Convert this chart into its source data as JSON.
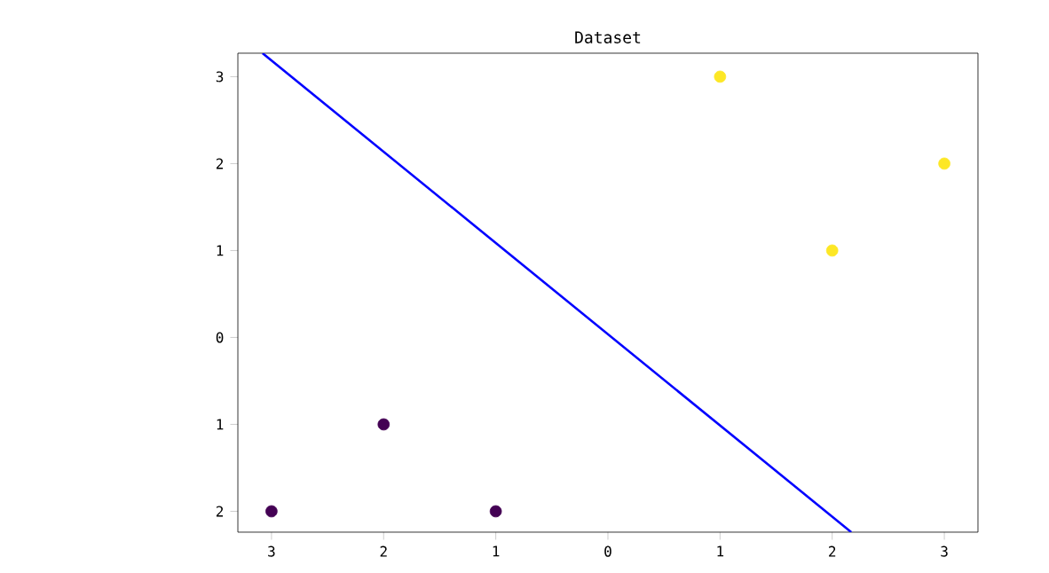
{
  "chart_data": {
    "type": "scatter",
    "title": "Dataset",
    "xlim": [
      -3.3,
      3.3
    ],
    "ylim": [
      -2.24,
      3.27
    ],
    "xticks": [
      {
        "value": -3,
        "label": "3"
      },
      {
        "value": -2,
        "label": "2"
      },
      {
        "value": -1,
        "label": "1"
      },
      0,
      1,
      2,
      3
    ],
    "yticks": [
      {
        "value": -2,
        "label": "2"
      },
      {
        "value": -1,
        "label": "1"
      },
      0,
      1,
      2,
      3
    ],
    "grid": false,
    "series": [
      {
        "marker": "circle",
        "color": "#440154",
        "x": [
          -3,
          -2,
          -1
        ],
        "values": [
          -2,
          -1,
          -2
        ]
      },
      {
        "marker": "circle",
        "color": "#fde725",
        "x": [
          1,
          2,
          3
        ],
        "values": [
          3,
          1,
          2
        ]
      },
      {
        "type": "line",
        "marker": "none",
        "color": "#0000ff",
        "x": [
          -3.08,
          2.17
        ],
        "values": [
          3.27,
          -2.24
        ]
      }
    ]
  }
}
